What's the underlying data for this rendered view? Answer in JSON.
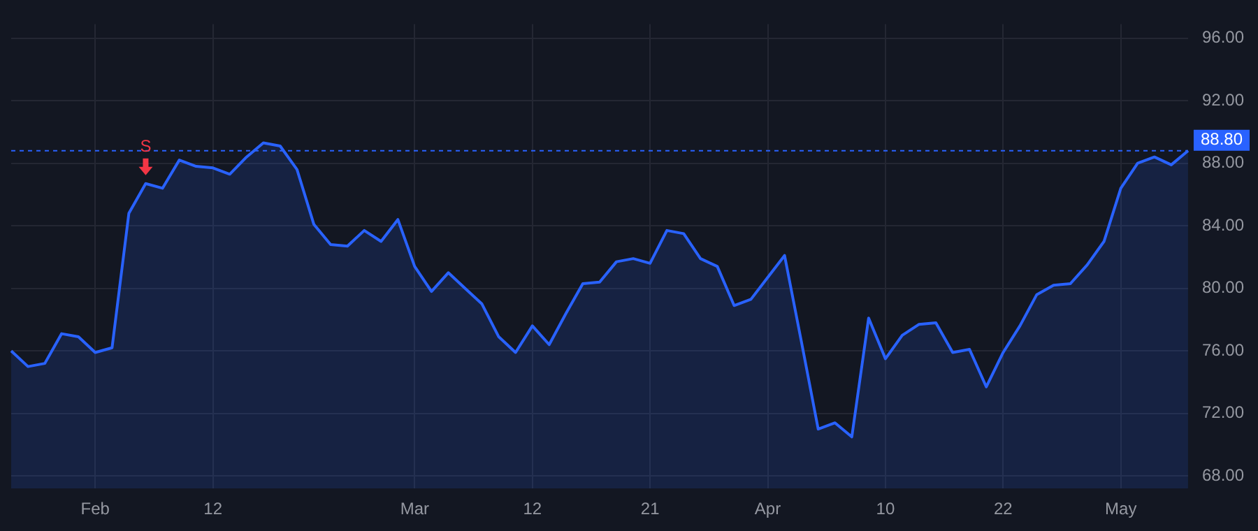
{
  "chart_data": {
    "type": "area",
    "categories": [
      null,
      null,
      null,
      null,
      null,
      "Feb",
      null,
      null,
      null,
      null,
      null,
      null,
      "12",
      null,
      null,
      null,
      null,
      null,
      null,
      null,
      null,
      null,
      null,
      null,
      "Mar",
      null,
      null,
      null,
      null,
      null,
      null,
      "12",
      null,
      null,
      null,
      null,
      null,
      null,
      "21",
      null,
      null,
      null,
      null,
      null,
      null,
      "Apr",
      null,
      null,
      null,
      null,
      null,
      null,
      "10",
      null,
      null,
      null,
      null,
      null,
      null,
      "22",
      null,
      null,
      null,
      null,
      null,
      null,
      "May",
      null,
      null,
      null,
      null
    ],
    "series": [
      {
        "color": "#2962ff",
        "values": [
          76.0,
          75.0,
          75.2,
          77.1,
          76.9,
          75.9,
          76.2,
          84.8,
          86.7,
          86.4,
          88.2,
          87.8,
          87.7,
          87.3,
          88.4,
          89.3,
          89.1,
          87.6,
          84.1,
          82.8,
          82.7,
          83.7,
          83.0,
          84.4,
          81.4,
          79.8,
          81.0,
          80.0,
          79.0,
          76.9,
          75.9,
          77.6,
          76.4,
          78.4,
          80.3,
          80.4,
          81.7,
          81.9,
          81.6,
          83.7,
          83.5,
          81.9,
          81.4,
          78.9,
          79.3,
          80.7,
          82.1,
          76.6,
          71.0,
          71.4,
          70.5,
          78.1,
          75.5,
          77.0,
          77.7,
          77.8,
          75.9,
          76.1,
          73.7,
          75.9,
          77.6,
          79.6,
          80.2,
          80.3,
          81.5,
          83.0,
          86.4,
          88.0,
          88.4,
          87.9,
          88.8
        ]
      }
    ],
    "ylim": [
      67.2,
      96.9
    ],
    "yticks": [
      {
        "value": 68,
        "label": "68.00"
      },
      {
        "value": 72,
        "label": "72.00"
      },
      {
        "value": 76,
        "label": "76.00"
      },
      {
        "value": 80,
        "label": "80.00"
      },
      {
        "value": 84,
        "label": "84.00"
      },
      {
        "value": 88,
        "label": "88.00"
      },
      {
        "value": 92,
        "label": "92.00"
      },
      {
        "value": 96,
        "label": "96.00"
      }
    ],
    "ref_lines": [
      {
        "axis": "y",
        "value": 88.8,
        "label": "88.80",
        "color": "#2962ff",
        "line_style": "dashed"
      }
    ],
    "annotations": [
      {
        "text": "S",
        "y": 86.7
      }
    ],
    "grid": true,
    "legend": false,
    "marker": "none",
    "line_style": "solid"
  }
}
